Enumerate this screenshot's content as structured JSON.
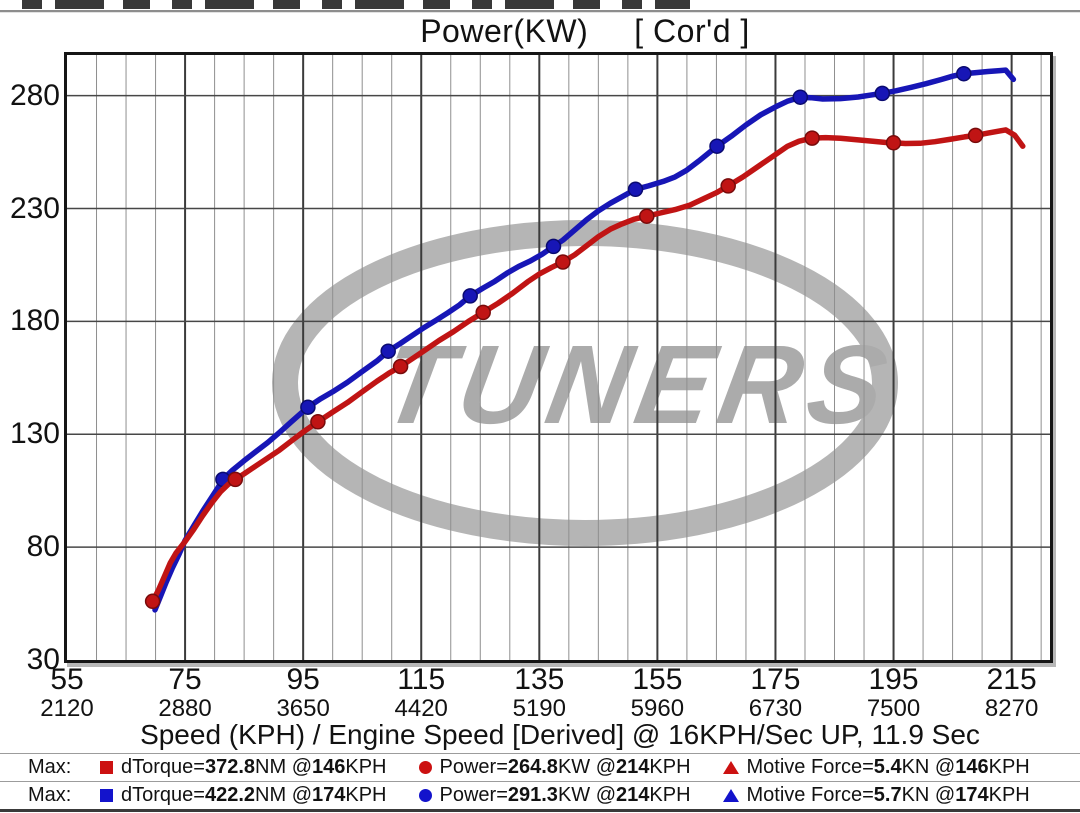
{
  "header": {
    "clipped_text_present": true
  },
  "chart_data": {
    "type": "line",
    "title": "Power(KW)",
    "title_bracket": "[ Cor'd ]",
    "xlabel": "Speed (KPH) / Engine Speed [Derived] @ 16KPH/Sec UP, 11.9 Sec",
    "xlim": [
      55,
      221.5
    ],
    "ylim": [
      30,
      298
    ],
    "x_major_ticks": [
      {
        "kph": 55,
        "rpm": 2120
      },
      {
        "kph": 75,
        "rpm": 2880
      },
      {
        "kph": 95,
        "rpm": 3650
      },
      {
        "kph": 115,
        "rpm": 4420
      },
      {
        "kph": 135,
        "rpm": 5190
      },
      {
        "kph": 155,
        "rpm": 5960
      },
      {
        "kph": 175,
        "rpm": 6730
      },
      {
        "kph": 195,
        "rpm": 7500
      },
      {
        "kph": 215,
        "rpm": 8270
      }
    ],
    "x_minor_step_kph": 5,
    "y_gridlines": [
      80,
      130,
      180,
      230,
      280
    ],
    "y_ticks": [
      280,
      230,
      180,
      130,
      80,
      30
    ],
    "grid": {
      "minor_color": "#8f8f8f",
      "major_color": "#3b3b3b",
      "h_color": "#474747",
      "frame_color": "#151515"
    },
    "watermark": {
      "text": "TUNERS",
      "ring_color": "#b5b5b5",
      "text_color": "#ababab"
    },
    "series": [
      {
        "name": "power-blue",
        "color": "#1716b6",
        "marker_edge": "#0a0a70",
        "points": [
          [
            69.9,
            52.2
          ],
          [
            70.8,
            58
          ],
          [
            71.8,
            64.5
          ],
          [
            72.8,
            70.5
          ],
          [
            74,
            77
          ],
          [
            75,
            83
          ],
          [
            76.5,
            89.5
          ],
          [
            78,
            96
          ],
          [
            79.5,
            102
          ],
          [
            80.5,
            106
          ],
          [
            81.4,
            110
          ],
          [
            83,
            114
          ],
          [
            85,
            118.3
          ],
          [
            87,
            122.3
          ],
          [
            89,
            126.3
          ],
          [
            91,
            130.8
          ],
          [
            93,
            135.5
          ],
          [
            95.8,
            142
          ],
          [
            98,
            145.8
          ],
          [
            100,
            148.8
          ],
          [
            102.5,
            153
          ],
          [
            105,
            157.8
          ],
          [
            107.5,
            162.5
          ],
          [
            109.4,
            166.8
          ],
          [
            111.5,
            170.3
          ],
          [
            113.5,
            173.8
          ],
          [
            115.5,
            177.3
          ],
          [
            117.5,
            180.5
          ],
          [
            119.5,
            183.8
          ],
          [
            121.5,
            187.3
          ],
          [
            123.3,
            191.3
          ],
          [
            125.5,
            194.8
          ],
          [
            127.5,
            197.8
          ],
          [
            129.5,
            201.3
          ],
          [
            131.5,
            204.3
          ],
          [
            133.5,
            206.8
          ],
          [
            135.5,
            209.8
          ],
          [
            137.4,
            213.2
          ],
          [
            139,
            216
          ],
          [
            141,
            220.5
          ],
          [
            143,
            225
          ],
          [
            145,
            229
          ],
          [
            147,
            232.3
          ],
          [
            149,
            235.2
          ],
          [
            151.3,
            238.5
          ],
          [
            153.5,
            240
          ],
          [
            156,
            242
          ],
          [
            158,
            244
          ],
          [
            160,
            247
          ],
          [
            162,
            251
          ],
          [
            165.1,
            257.6
          ],
          [
            167.5,
            262
          ],
          [
            170,
            267
          ],
          [
            172.5,
            271.5
          ],
          [
            175,
            275
          ],
          [
            177,
            277.5
          ],
          [
            179.2,
            279.3
          ],
          [
            181,
            279.1
          ],
          [
            183,
            278.5
          ],
          [
            186,
            278.7
          ],
          [
            189,
            279.4
          ],
          [
            191,
            280.2
          ],
          [
            193.1,
            281
          ],
          [
            195.5,
            282.2
          ],
          [
            198,
            283.7
          ],
          [
            200.5,
            285.3
          ],
          [
            203,
            287.1
          ],
          [
            205,
            288.6
          ],
          [
            206.9,
            289.7
          ],
          [
            209,
            290.2
          ],
          [
            211,
            290.7
          ],
          [
            213,
            291.1
          ],
          [
            214,
            291.3
          ],
          [
            215.3,
            287.2
          ]
        ],
        "markers": [
          [
            81.4,
            110
          ],
          [
            95.8,
            142
          ],
          [
            109.4,
            166.8
          ],
          [
            123.3,
            191.3
          ],
          [
            137.4,
            213.2
          ],
          [
            151.3,
            238.5
          ],
          [
            165.1,
            257.6
          ],
          [
            179.2,
            279.3
          ],
          [
            193.1,
            281
          ],
          [
            206.9,
            289.7
          ]
        ]
      },
      {
        "name": "power-red",
        "color": "#c01414",
        "marker_edge": "#780b0b",
        "points": [
          [
            69.5,
            56
          ],
          [
            70.5,
            61
          ],
          [
            71.5,
            67
          ],
          [
            72.5,
            73
          ],
          [
            73.5,
            77.5
          ],
          [
            75,
            82.5
          ],
          [
            76.5,
            88
          ],
          [
            78,
            94
          ],
          [
            79.5,
            99.5
          ],
          [
            81,
            104.5
          ],
          [
            82.3,
            107.8
          ],
          [
            83.5,
            110
          ],
          [
            85,
            112.5
          ],
          [
            87,
            116
          ],
          [
            89,
            119.5
          ],
          [
            91,
            123
          ],
          [
            93,
            127
          ],
          [
            95,
            131
          ],
          [
            97.5,
            135.5
          ],
          [
            100,
            139.8
          ],
          [
            102.5,
            144
          ],
          [
            105,
            148.8
          ],
          [
            107.5,
            153.5
          ],
          [
            109.5,
            157
          ],
          [
            111.5,
            160
          ],
          [
            113.5,
            163.5
          ],
          [
            115.5,
            167
          ],
          [
            118,
            171.5
          ],
          [
            120.5,
            175.5
          ],
          [
            123,
            180
          ],
          [
            125.5,
            184
          ],
          [
            128,
            188
          ],
          [
            130.5,
            192.5
          ],
          [
            133,
            197.5
          ],
          [
            135,
            201
          ],
          [
            137,
            203.8
          ],
          [
            139,
            206.3
          ],
          [
            141,
            209.5
          ],
          [
            143,
            213.5
          ],
          [
            145,
            217.5
          ],
          [
            147,
            220.8
          ],
          [
            149,
            223.2
          ],
          [
            151,
            225.2
          ],
          [
            153.2,
            226.6
          ],
          [
            155.5,
            228
          ],
          [
            158,
            229.5
          ],
          [
            160.5,
            231.5
          ],
          [
            163,
            234.5
          ],
          [
            165,
            237
          ],
          [
            167,
            240
          ],
          [
            169.5,
            244
          ],
          [
            172,
            248.5
          ],
          [
            174.5,
            253
          ],
          [
            177,
            257.5
          ],
          [
            179,
            259.8
          ],
          [
            181.2,
            261.2
          ],
          [
            183.5,
            261.4
          ],
          [
            186,
            261.1
          ],
          [
            189,
            260.4
          ],
          [
            191.5,
            259.8
          ],
          [
            193.5,
            259.3
          ],
          [
            195,
            259.1
          ],
          [
            197,
            258.8
          ],
          [
            199.5,
            258.9
          ],
          [
            202,
            259.6
          ],
          [
            204.5,
            260.6
          ],
          [
            207,
            261.7
          ],
          [
            208.9,
            262.4
          ],
          [
            211,
            263.4
          ],
          [
            213,
            264.4
          ],
          [
            214,
            264.8
          ],
          [
            215.5,
            262.5
          ],
          [
            216.9,
            257.6
          ]
        ],
        "markers": [
          [
            69.5,
            56
          ],
          [
            83.5,
            110
          ],
          [
            97.5,
            135.5
          ],
          [
            111.5,
            160
          ],
          [
            125.5,
            184
          ],
          [
            139,
            206.3
          ],
          [
            153.2,
            226.6
          ],
          [
            167,
            240
          ],
          [
            181.2,
            261.2
          ],
          [
            195,
            259.1
          ],
          [
            208.9,
            262.4
          ]
        ]
      }
    ]
  },
  "legend": {
    "rows": [
      {
        "prefix": "Max:",
        "color": "#cc1111",
        "items": [
          {
            "marker": "square",
            "label": "dTorque= ",
            "value": "372.8",
            "after_value": "NM @ ",
            "at": "146",
            "after_at": "KPH"
          },
          {
            "marker": "circle",
            "label": "Power= ",
            "value": "264.8",
            "after_value": "KW @ ",
            "at": "214",
            "after_at": "KPH"
          },
          {
            "marker": "triangle",
            "label": "Motive Force= ",
            "value": "5.4",
            "after_value": "KN @ ",
            "at": "146",
            "after_at": "KPH"
          }
        ]
      },
      {
        "prefix": "Max:",
        "color": "#1313cc",
        "items": [
          {
            "marker": "square",
            "label": "dTorque= ",
            "value": "422.2",
            "after_value": "NM @ ",
            "at": "174",
            "after_at": "KPH"
          },
          {
            "marker": "circle",
            "label": "Power= ",
            "value": "291.3",
            "after_value": "KW @ ",
            "at": "214",
            "after_at": "KPH"
          },
          {
            "marker": "triangle",
            "label": "Motive Force= ",
            "value": "5.7",
            "after_value": "KN @ ",
            "at": "174",
            "after_at": "KPH"
          }
        ]
      }
    ]
  }
}
